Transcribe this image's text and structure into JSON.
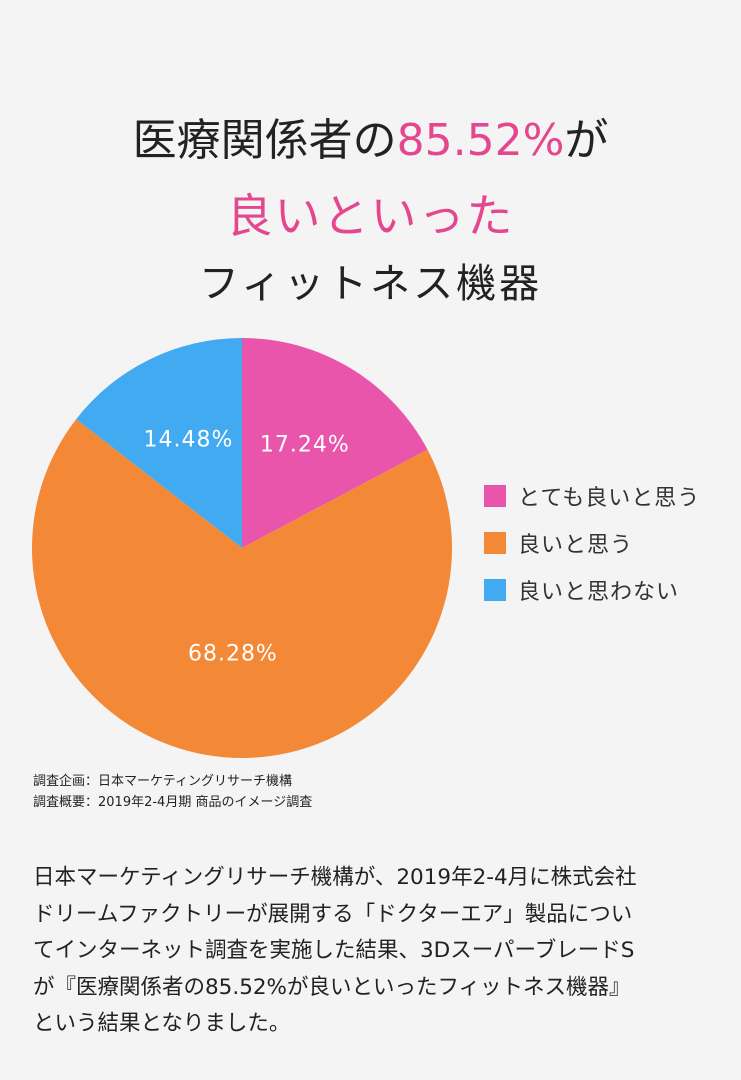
{
  "headline": {
    "line1_before": "医療関係者の",
    "line1_accent": "85.52%",
    "line1_after": "が",
    "line2": "良いといった",
    "line3": "フィットネス機器"
  },
  "colors": {
    "pink": "#ea55ac",
    "orange": "#f38936",
    "blue": "#42aaf0",
    "accent_text": "#e4478d"
  },
  "chart_data": {
    "type": "pie",
    "slices": [
      {
        "label": "とても良いと思う",
        "value": 17.24,
        "display": "17.24%",
        "color": "#ea55ac"
      },
      {
        "label": "良いと思う",
        "value": 68.28,
        "display": "68.28%",
        "color": "#f38936"
      },
      {
        "label": "良いと思わない",
        "value": 14.48,
        "display": "14.48%",
        "color": "#42aaf0"
      }
    ],
    "legend_position": "right"
  },
  "notes": {
    "line1": "調査企画：日本マーケティングリサーチ機構",
    "line2": "調査概要：2019年2-4月期 商品のイメージ調査"
  },
  "body": {
    "lines": [
      "日本マーケティングリサーチ機構が、2019年2-4月に株式会社",
      "ドリームファクトリーが展開する「ドクターエア」製品につい",
      "てインターネット調査を実施した結果、3DスーパーブレードS",
      "が『医療関係者の85.52%が良いといったフィットネス機器』",
      "という結果となりました。"
    ]
  }
}
